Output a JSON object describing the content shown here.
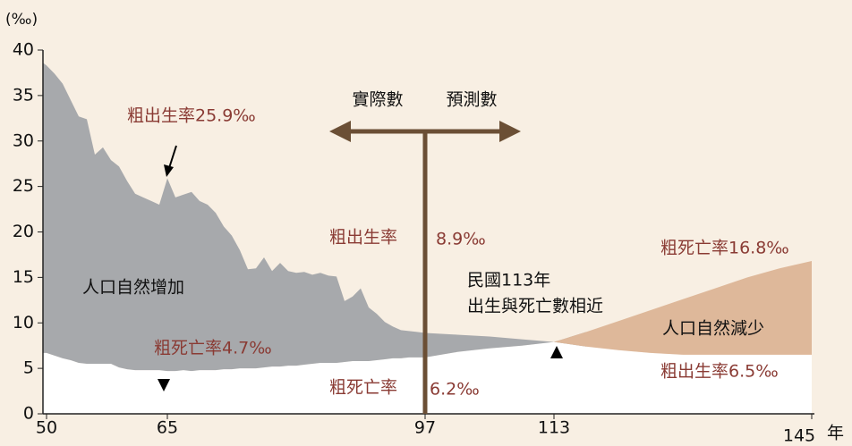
{
  "chart_data": {
    "type": "area-band",
    "y_unit": "(‰)",
    "x_unit": "年",
    "x": [
      50,
      51,
      52,
      53,
      54,
      55,
      56,
      57,
      58,
      59,
      60,
      61,
      62,
      63,
      64,
      65,
      66,
      67,
      68,
      69,
      70,
      71,
      72,
      73,
      74,
      75,
      76,
      77,
      78,
      79,
      80,
      81,
      82,
      83,
      84,
      85,
      86,
      87,
      88,
      89,
      90,
      91,
      92,
      93,
      94,
      95,
      96,
      97,
      101,
      105,
      109,
      113,
      117,
      121,
      125,
      129,
      133,
      137,
      141,
      145
    ],
    "series": [
      {
        "name": "粗出生率",
        "color": "#a7a9ac",
        "values": [
          38.3,
          37.4,
          36.3,
          34.5,
          32.7,
          32.4,
          28.5,
          29.3,
          27.9,
          27.2,
          25.6,
          24.2,
          23.8,
          23.4,
          23.0,
          25.9,
          23.8,
          24.1,
          24.4,
          23.4,
          23.0,
          22.1,
          20.6,
          19.6,
          18.0,
          15.9,
          16.0,
          17.2,
          15.7,
          16.6,
          15.7,
          15.5,
          15.6,
          15.3,
          15.5,
          15.2,
          15.1,
          12.4,
          12.9,
          13.8,
          11.7,
          11.0,
          10.1,
          9.6,
          9.2,
          9.1,
          9.0,
          8.9,
          8.7,
          8.5,
          8.2,
          7.9,
          7.4,
          7.0,
          6.7,
          6.5,
          6.5,
          6.5,
          6.5,
          6.5
        ]
      },
      {
        "name": "粗死亡率",
        "color": "#deb89a",
        "values": [
          6.7,
          6.4,
          6.1,
          5.9,
          5.6,
          5.5,
          5.5,
          5.5,
          5.5,
          5.1,
          4.9,
          4.8,
          4.8,
          4.8,
          4.8,
          4.7,
          4.7,
          4.8,
          4.7,
          4.8,
          4.8,
          4.8,
          4.9,
          4.9,
          5.0,
          5.0,
          5.0,
          5.1,
          5.2,
          5.2,
          5.3,
          5.3,
          5.4,
          5.5,
          5.6,
          5.6,
          5.6,
          5.7,
          5.8,
          5.8,
          5.8,
          5.9,
          6.0,
          6.1,
          6.1,
          6.2,
          6.2,
          6.2,
          6.8,
          7.2,
          7.5,
          7.9,
          9.0,
          10.2,
          11.4,
          12.6,
          13.8,
          15.0,
          16.0,
          16.8
        ]
      }
    ],
    "xlim": [
      50,
      145
    ],
    "xticks": [
      50,
      65,
      97,
      113,
      145
    ],
    "ylim": [
      0,
      40
    ],
    "yticks": [
      0,
      5,
      10,
      15,
      20,
      25,
      30,
      35,
      40
    ],
    "annotations": {
      "birth_peak": "粗出生率25.9‰",
      "death_65": "粗死亡率4.7‰",
      "birth_97_name": "粗出生率",
      "birth_97_value": "8.9‰",
      "death_97_name": "粗死亡率",
      "death_97_value": "6.2‰",
      "death_145": "粗死亡率16.8‰",
      "birth_145": "粗出生率6.5‰",
      "increase": "人口自然增加",
      "decrease": "人口自然減少",
      "cross_line1": "民國113年",
      "cross_line2": "出生與死亡數相近",
      "actual": "實際數",
      "forecast": "預測數"
    }
  }
}
